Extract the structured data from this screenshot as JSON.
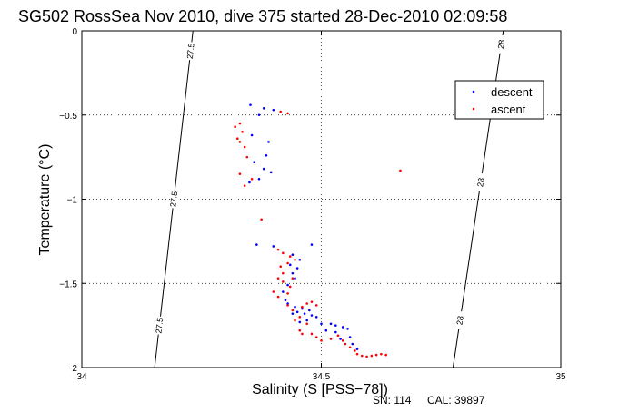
{
  "chart_data": {
    "type": "scatter",
    "title": "SG502 RossSea Nov 2010, dive 375 started 28-Dec-2010 02:09:58",
    "xlabel": "Salinity (S [PSS−78])",
    "ylabel": "Temperature (°C)",
    "xlim": [
      34,
      35
    ],
    "ylim": [
      -2,
      0
    ],
    "x_ticks": [
      34,
      34.5,
      35
    ],
    "y_ticks": [
      0,
      -0.5,
      -1,
      -1.5,
      -2
    ],
    "x_tick_labels": [
      "34",
      "34.5",
      "35"
    ],
    "y_tick_labels": [
      "0",
      "−0.5",
      "−1",
      "−1.5",
      "−2"
    ],
    "grid": true,
    "legend_position": "top-right",
    "colors": {
      "descent": "#0000ff",
      "ascent": "#ff0000"
    },
    "isopycnals": [
      {
        "label": "27.5",
        "points": [
          [
            34.232,
            0
          ],
          [
            34.152,
            -2
          ]
        ],
        "label_y": [
          -0.12,
          -1.0,
          -1.75
        ]
      },
      {
        "label": "28",
        "points": [
          [
            34.88,
            0
          ],
          [
            34.775,
            -2
          ]
        ],
        "label_y": [
          -0.08,
          -0.9,
          -1.72
        ]
      }
    ],
    "series": [
      {
        "name": "descent",
        "points": [
          [
            34.352,
            -0.44
          ],
          [
            34.38,
            -0.46
          ],
          [
            34.4,
            -0.47
          ],
          [
            34.37,
            -0.5
          ],
          [
            34.355,
            -0.62
          ],
          [
            34.39,
            -0.66
          ],
          [
            34.385,
            -0.74
          ],
          [
            34.36,
            -0.78
          ],
          [
            34.38,
            -0.82
          ],
          [
            34.395,
            -0.84
          ],
          [
            34.37,
            -0.88
          ],
          [
            34.35,
            -0.9
          ],
          [
            34.365,
            -1.27
          ],
          [
            34.48,
            -1.27
          ],
          [
            34.4,
            -1.28
          ],
          [
            34.44,
            -1.33
          ],
          [
            34.455,
            -1.36
          ],
          [
            34.435,
            -1.39
          ],
          [
            34.45,
            -1.41
          ],
          [
            34.44,
            -1.44
          ],
          [
            34.445,
            -1.47
          ],
          [
            34.43,
            -1.51
          ],
          [
            34.42,
            -1.55
          ],
          [
            34.425,
            -1.6
          ],
          [
            34.43,
            -1.62
          ],
          [
            34.445,
            -1.64
          ],
          [
            34.46,
            -1.65
          ],
          [
            34.475,
            -1.66
          ],
          [
            34.45,
            -1.67
          ],
          [
            34.44,
            -1.68
          ],
          [
            34.465,
            -1.68
          ],
          [
            34.48,
            -1.69
          ],
          [
            34.49,
            -1.7
          ],
          [
            34.47,
            -1.72
          ],
          [
            34.455,
            -1.73
          ],
          [
            34.5,
            -1.74
          ],
          [
            34.52,
            -1.74
          ],
          [
            34.53,
            -1.75
          ],
          [
            34.545,
            -1.76
          ],
          [
            34.555,
            -1.77
          ],
          [
            34.51,
            -1.78
          ],
          [
            34.53,
            -1.79
          ],
          [
            34.56,
            -1.82
          ],
          [
            34.54,
            -1.83
          ],
          [
            34.565,
            -1.86
          ],
          [
            34.575,
            -1.89
          ]
        ]
      },
      {
        "name": "ascent",
        "points": [
          [
            34.33,
            -0.55
          ],
          [
            34.32,
            -0.57
          ],
          [
            34.335,
            -0.6
          ],
          [
            34.325,
            -0.64
          ],
          [
            34.33,
            -0.66
          ],
          [
            34.34,
            -0.69
          ],
          [
            34.345,
            -0.75
          ],
          [
            34.33,
            -0.85
          ],
          [
            34.34,
            -0.92
          ],
          [
            34.355,
            -0.88
          ],
          [
            34.43,
            -0.49
          ],
          [
            34.415,
            -0.48
          ],
          [
            34.665,
            -0.83
          ],
          [
            34.375,
            -1.12
          ],
          [
            34.41,
            -1.3
          ],
          [
            34.42,
            -1.32
          ],
          [
            34.435,
            -1.34
          ],
          [
            34.445,
            -1.36
          ],
          [
            34.43,
            -1.38
          ],
          [
            34.415,
            -1.4
          ],
          [
            34.42,
            -1.44
          ],
          [
            34.41,
            -1.47
          ],
          [
            34.44,
            -1.47
          ],
          [
            34.42,
            -1.49
          ],
          [
            34.435,
            -1.52
          ],
          [
            34.43,
            -1.56
          ],
          [
            34.4,
            -1.55
          ],
          [
            34.41,
            -1.58
          ],
          [
            34.43,
            -1.63
          ],
          [
            34.44,
            -1.66
          ],
          [
            34.46,
            -1.64
          ],
          [
            34.47,
            -1.62
          ],
          [
            34.48,
            -1.61
          ],
          [
            34.49,
            -1.63
          ],
          [
            34.455,
            -1.7
          ],
          [
            34.445,
            -1.72
          ],
          [
            34.47,
            -1.74
          ],
          [
            34.455,
            -1.78
          ],
          [
            34.46,
            -1.8
          ],
          [
            34.48,
            -1.8
          ],
          [
            34.49,
            -1.82
          ],
          [
            34.5,
            -1.84
          ],
          [
            34.52,
            -1.83
          ],
          [
            34.535,
            -1.81
          ],
          [
            34.545,
            -1.84
          ],
          [
            34.55,
            -1.86
          ],
          [
            34.56,
            -1.88
          ],
          [
            34.57,
            -1.9
          ],
          [
            34.575,
            -1.92
          ],
          [
            34.585,
            -1.93
          ],
          [
            34.595,
            -1.935
          ],
          [
            34.605,
            -1.93
          ],
          [
            34.615,
            -1.925
          ],
          [
            34.625,
            -1.92
          ],
          [
            34.635,
            -1.925
          ]
        ]
      }
    ]
  },
  "legend": {
    "descent_label": "descent",
    "ascent_label": "ascent"
  },
  "footer": {
    "serial": "SN: 114",
    "calibration": "CAL: 39897"
  }
}
